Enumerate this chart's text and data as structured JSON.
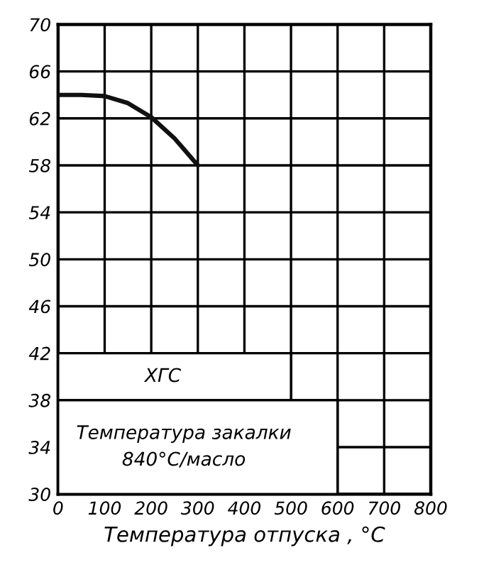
{
  "chart_data": {
    "type": "line",
    "x": [
      0,
      50,
      100,
      150,
      200,
      250,
      300
    ],
    "series": [
      {
        "color": "#111111",
        "values": [
          64,
          64,
          63.9,
          63.3,
          62.1,
          60.3,
          58
        ]
      }
    ],
    "xlabel": "Температура отпуска , °С",
    "xlim": [
      0,
      800
    ],
    "xticks": [
      0,
      100,
      200,
      300,
      400,
      500,
      600,
      700,
      800
    ],
    "ylim": [
      30,
      70
    ],
    "yticks": [
      30,
      34,
      38,
      42,
      46,
      50,
      54,
      58,
      62,
      66,
      70
    ],
    "grid": true,
    "marker": "none",
    "line_style": "solid",
    "annotations": [
      "ХГС",
      "Температура закалки\n840°С/масло"
    ]
  }
}
